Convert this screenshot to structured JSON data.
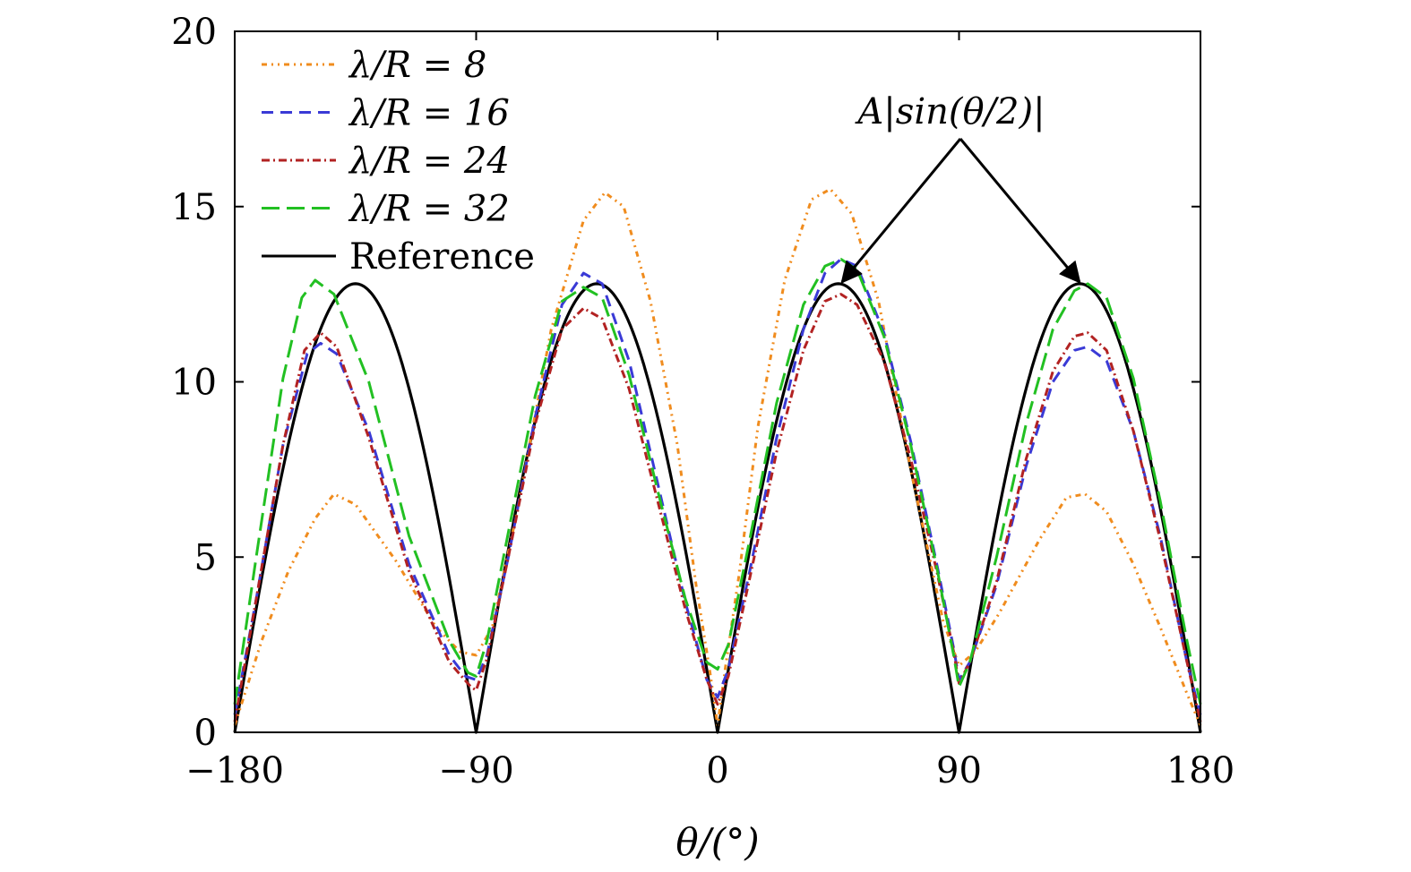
{
  "chart_data": {
    "type": "line",
    "xlabel": "θ/(°)",
    "ylabel": "",
    "title": "",
    "xlim": [
      -180,
      180
    ],
    "ylim": [
      0,
      20
    ],
    "x_ticks": [
      -180,
      -90,
      0,
      90,
      180
    ],
    "x_tick_labels": [
      "−180",
      "−90",
      "0",
      "90",
      "180"
    ],
    "y_ticks": [
      0,
      5,
      10,
      15,
      20
    ],
    "y_tick_labels": [
      "0",
      "5",
      "10",
      "15",
      "20"
    ],
    "grid": false,
    "legend_position": "top-left",
    "annotation": "A|sin(θ/2)|",
    "series": [
      {
        "name": "λ/R = 8",
        "color": "#f08c1e",
        "dash": "6,5,2,5,2,5",
        "points": [
          [
            -180,
            0.2
          ],
          [
            -170,
            2.6
          ],
          [
            -160,
            4.6
          ],
          [
            -150,
            6.1
          ],
          [
            -143,
            6.8
          ],
          [
            -135,
            6.5
          ],
          [
            -120,
            4.9
          ],
          [
            -105,
            3.0
          ],
          [
            -96,
            2.3
          ],
          [
            -90,
            2.2
          ],
          [
            -84,
            3.0
          ],
          [
            -75,
            6.2
          ],
          [
            -62,
            11.5
          ],
          [
            -50,
            14.6
          ],
          [
            -42,
            15.4
          ],
          [
            -35,
            15.0
          ],
          [
            -25,
            12.3
          ],
          [
            -15,
            8.2
          ],
          [
            -8,
            4.2
          ],
          [
            -3,
            1.8
          ],
          [
            0,
            0.2
          ],
          [
            3,
            1.9
          ],
          [
            8,
            4.5
          ],
          [
            15,
            8.7
          ],
          [
            25,
            12.9
          ],
          [
            35,
            15.2
          ],
          [
            42,
            15.5
          ],
          [
            50,
            14.8
          ],
          [
            60,
            12.3
          ],
          [
            72,
            7.5
          ],
          [
            84,
            3.2
          ],
          [
            90,
            1.9
          ],
          [
            96,
            2.3
          ],
          [
            105,
            3.4
          ],
          [
            120,
            5.5
          ],
          [
            130,
            6.7
          ],
          [
            137,
            6.8
          ],
          [
            145,
            6.3
          ],
          [
            155,
            4.8
          ],
          [
            165,
            3.0
          ],
          [
            175,
            1.1
          ],
          [
            180,
            0.2
          ]
        ]
      },
      {
        "name": "λ/R = 16",
        "color": "#3a3ad6",
        "dash": "13,8",
        "points": [
          [
            -180,
            0.5
          ],
          [
            -172,
            3.8
          ],
          [
            -162,
            8.2
          ],
          [
            -153,
            10.8
          ],
          [
            -148,
            11.1
          ],
          [
            -142,
            10.8
          ],
          [
            -130,
            8.6
          ],
          [
            -115,
            4.8
          ],
          [
            -100,
            2.2
          ],
          [
            -94,
            1.6
          ],
          [
            -90,
            1.5
          ],
          [
            -86,
            2.2
          ],
          [
            -78,
            5.0
          ],
          [
            -68,
            9.0
          ],
          [
            -58,
            12.2
          ],
          [
            -50,
            13.1
          ],
          [
            -43,
            12.8
          ],
          [
            -33,
            10.6
          ],
          [
            -22,
            7.0
          ],
          [
            -12,
            3.7
          ],
          [
            -4,
            1.5
          ],
          [
            0,
            1.0
          ],
          [
            4,
            1.8
          ],
          [
            12,
            4.6
          ],
          [
            22,
            8.4
          ],
          [
            32,
            11.5
          ],
          [
            40,
            13.1
          ],
          [
            46,
            13.5
          ],
          [
            52,
            13.3
          ],
          [
            62,
            11.4
          ],
          [
            72,
            8.3
          ],
          [
            82,
            4.7
          ],
          [
            88,
            2.4
          ],
          [
            90,
            1.5
          ],
          [
            94,
            2.0
          ],
          [
            104,
            4.2
          ],
          [
            115,
            7.6
          ],
          [
            125,
            10.0
          ],
          [
            133,
            10.9
          ],
          [
            138,
            11.0
          ],
          [
            145,
            10.6
          ],
          [
            155,
            8.6
          ],
          [
            165,
            5.6
          ],
          [
            175,
            2.0
          ],
          [
            180,
            0.5
          ]
        ]
      },
      {
        "name": "λ/R = 24",
        "color": "#b22222",
        "dash": "9,4,2,4",
        "points": [
          [
            -180,
            0.3
          ],
          [
            -172,
            3.8
          ],
          [
            -162,
            8.2
          ],
          [
            -154,
            10.9
          ],
          [
            -148,
            11.4
          ],
          [
            -142,
            11.0
          ],
          [
            -130,
            8.4
          ],
          [
            -115,
            4.6
          ],
          [
            -100,
            2.0
          ],
          [
            -92,
            1.3
          ],
          [
            -90,
            1.2
          ],
          [
            -86,
            2.1
          ],
          [
            -78,
            5.0
          ],
          [
            -68,
            8.8
          ],
          [
            -58,
            11.5
          ],
          [
            -50,
            12.1
          ],
          [
            -43,
            11.8
          ],
          [
            -33,
            9.8
          ],
          [
            -22,
            6.5
          ],
          [
            -12,
            3.5
          ],
          [
            -4,
            1.5
          ],
          [
            0,
            0.8
          ],
          [
            4,
            1.6
          ],
          [
            12,
            4.4
          ],
          [
            22,
            8.0
          ],
          [
            32,
            10.9
          ],
          [
            40,
            12.3
          ],
          [
            46,
            12.5
          ],
          [
            52,
            12.2
          ],
          [
            62,
            10.6
          ],
          [
            72,
            7.8
          ],
          [
            82,
            4.5
          ],
          [
            88,
            2.3
          ],
          [
            90,
            1.4
          ],
          [
            94,
            2.0
          ],
          [
            104,
            4.3
          ],
          [
            115,
            7.8
          ],
          [
            125,
            10.3
          ],
          [
            133,
            11.3
          ],
          [
            138,
            11.4
          ],
          [
            145,
            10.9
          ],
          [
            155,
            8.6
          ],
          [
            165,
            5.5
          ],
          [
            175,
            2.0
          ],
          [
            180,
            0.3
          ]
        ]
      },
      {
        "name": "λ/R = 32",
        "color": "#22c022",
        "dash": "20,8",
        "points": [
          [
            -180,
            0.8
          ],
          [
            -172,
            5.0
          ],
          [
            -162,
            10.1
          ],
          [
            -155,
            12.4
          ],
          [
            -150,
            12.9
          ],
          [
            -143,
            12.5
          ],
          [
            -130,
            10.0
          ],
          [
            -115,
            5.6
          ],
          [
            -100,
            2.6
          ],
          [
            -93,
            1.7
          ],
          [
            -90,
            1.6
          ],
          [
            -86,
            2.6
          ],
          [
            -78,
            5.7
          ],
          [
            -68,
            9.6
          ],
          [
            -58,
            12.3
          ],
          [
            -50,
            12.7
          ],
          [
            -43,
            12.4
          ],
          [
            -33,
            10.2
          ],
          [
            -22,
            6.8
          ],
          [
            -12,
            3.8
          ],
          [
            -4,
            2.0
          ],
          [
            0,
            1.8
          ],
          [
            4,
            2.5
          ],
          [
            12,
            5.5
          ],
          [
            22,
            9.4
          ],
          [
            32,
            12.2
          ],
          [
            40,
            13.3
          ],
          [
            46,
            13.5
          ],
          [
            52,
            13.2
          ],
          [
            62,
            11.3
          ],
          [
            72,
            8.2
          ],
          [
            82,
            4.6
          ],
          [
            88,
            2.2
          ],
          [
            90,
            1.3
          ],
          [
            94,
            2.0
          ],
          [
            104,
            5.0
          ],
          [
            115,
            8.8
          ],
          [
            125,
            11.5
          ],
          [
            133,
            12.6
          ],
          [
            138,
            12.8
          ],
          [
            145,
            12.4
          ],
          [
            155,
            10.1
          ],
          [
            165,
            6.6
          ],
          [
            175,
            2.6
          ],
          [
            180,
            0.8
          ]
        ]
      },
      {
        "name": "Reference",
        "color": "#000000",
        "dash": "",
        "formula": "12.8*|sin(2θ)|"
      }
    ]
  }
}
